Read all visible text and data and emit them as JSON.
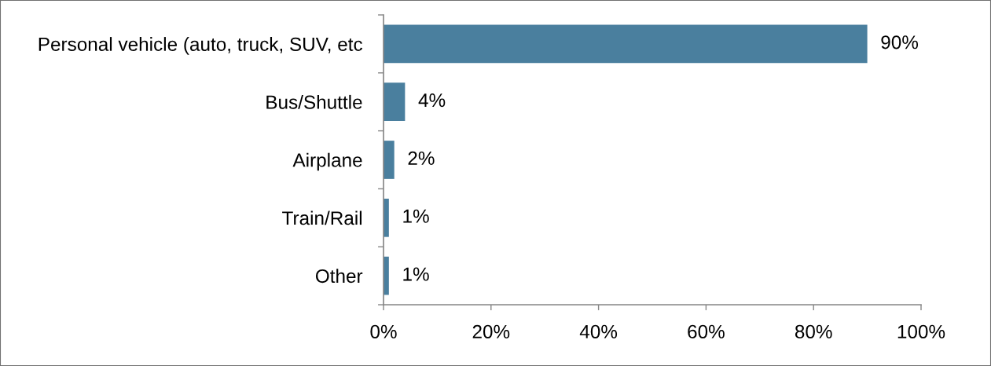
{
  "chart_data": {
    "type": "bar",
    "orientation": "horizontal",
    "categories": [
      "Personal vehicle (auto, truck, SUV, etc",
      "Bus/Shuttle",
      "Airplane",
      "Train/Rail",
      "Other"
    ],
    "values": [
      90,
      4,
      2,
      1,
      1
    ],
    "color": "#4a7f9e",
    "value_labels": [
      "90%",
      "4%",
      "2%",
      "1%",
      "1%"
    ],
    "xlim": [
      0,
      100
    ],
    "xticks": [
      {
        "value": 0,
        "label": "0%"
      },
      {
        "value": 20,
        "label": "20%"
      },
      {
        "value": 40,
        "label": "40%"
      },
      {
        "value": 60,
        "label": "60%"
      },
      {
        "value": 80,
        "label": "80%"
      },
      {
        "value": 100,
        "label": "100%"
      }
    ]
  }
}
